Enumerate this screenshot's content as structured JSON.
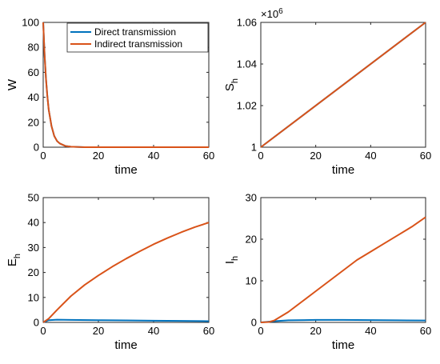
{
  "legend": [
    "Direct transmission",
    "Indirect transmission"
  ],
  "colors": {
    "direct": "#0072BD",
    "indirect": "#D95319"
  },
  "chart_data": [
    {
      "type": "line",
      "xlabel": "time",
      "ylabel": "W",
      "ylabel_sub": "",
      "xlim": [
        0,
        60
      ],
      "ylim": [
        0,
        100
      ],
      "xticks": [
        "0",
        "20",
        "40",
        "60"
      ],
      "yticks": [
        "0",
        "20",
        "40",
        "60",
        "80",
        "100"
      ],
      "exponent": "",
      "has_legend": true,
      "series": [
        {
          "name": "Direct transmission",
          "x": [
            0,
            0.5,
            1,
            1.5,
            2,
            3,
            4,
            5,
            6,
            8,
            10,
            15,
            20,
            30,
            40,
            50,
            60
          ],
          "y": [
            100,
            74,
            55,
            41,
            30,
            17,
            9,
            5,
            3,
            1,
            0.4,
            0,
            0,
            0,
            0,
            0,
            0
          ]
        },
        {
          "name": "Indirect transmission",
          "x": [
            0,
            0.5,
            1,
            1.5,
            2,
            3,
            4,
            5,
            6,
            8,
            10,
            15,
            20,
            30,
            40,
            50,
            60
          ],
          "y": [
            100,
            74,
            55,
            41,
            30,
            17,
            9,
            5,
            3,
            1,
            0.4,
            0,
            0,
            0,
            0,
            0,
            0
          ]
        }
      ]
    },
    {
      "type": "line",
      "xlabel": "time",
      "ylabel": "S",
      "ylabel_sub": "h",
      "xlim": [
        0,
        60
      ],
      "ylim": [
        1,
        1.06
      ],
      "xticks": [
        "0",
        "20",
        "40",
        "60"
      ],
      "yticks": [
        "1",
        "1.02",
        "1.04",
        "1.06"
      ],
      "exponent": "×10^6",
      "exponent_base": "×10",
      "exponent_power": "6",
      "has_legend": false,
      "series": [
        {
          "name": "Direct transmission",
          "x": [
            0,
            60
          ],
          "y": [
            1,
            1.06
          ]
        },
        {
          "name": "Indirect transmission",
          "x": [
            0,
            60
          ],
          "y": [
            1,
            1.06
          ]
        }
      ]
    },
    {
      "type": "line",
      "xlabel": "time",
      "ylabel": "E",
      "ylabel_sub": "h",
      "xlim": [
        0,
        60
      ],
      "ylim": [
        0,
        50
      ],
      "xticks": [
        "0",
        "20",
        "40",
        "60"
      ],
      "yticks": [
        "0",
        "10",
        "20",
        "30",
        "40",
        "50"
      ],
      "exponent": "",
      "has_legend": false,
      "series": [
        {
          "name": "Direct transmission",
          "x": [
            0,
            2,
            5,
            10,
            20,
            30,
            40,
            50,
            60
          ],
          "y": [
            0,
            0.9,
            1.1,
            1.0,
            0.9,
            0.8,
            0.7,
            0.6,
            0.5
          ]
        },
        {
          "name": "Indirect transmission",
          "x": [
            0,
            2,
            5,
            10,
            15,
            20,
            25,
            30,
            35,
            40,
            45,
            50,
            55,
            60
          ],
          "y": [
            0,
            1.5,
            5,
            10.5,
            15,
            18.8,
            22.3,
            25.5,
            28.5,
            31.3,
            33.8,
            36.1,
            38.2,
            40
          ]
        }
      ]
    },
    {
      "type": "line",
      "xlabel": "time",
      "ylabel": "I",
      "ylabel_sub": "h",
      "xlim": [
        0,
        60
      ],
      "ylim": [
        0,
        30
      ],
      "xticks": [
        "0",
        "20",
        "40",
        "60"
      ],
      "yticks": [
        "0",
        "10",
        "20",
        "30"
      ],
      "exponent": "",
      "has_legend": false,
      "series": [
        {
          "name": "Direct transmission",
          "x": [
            0,
            5,
            10,
            20,
            30,
            40,
            50,
            60
          ],
          "y": [
            0,
            0.3,
            0.5,
            0.6,
            0.6,
            0.55,
            0.5,
            0.45
          ]
        },
        {
          "name": "Indirect transmission",
          "x": [
            0,
            3,
            5,
            10,
            15,
            20,
            25,
            30,
            35,
            40,
            45,
            50,
            55,
            60
          ],
          "y": [
            0,
            0.1,
            0.5,
            2.5,
            5,
            7.5,
            10,
            12.5,
            15,
            17,
            19,
            21,
            23,
            25.3
          ]
        }
      ]
    }
  ]
}
